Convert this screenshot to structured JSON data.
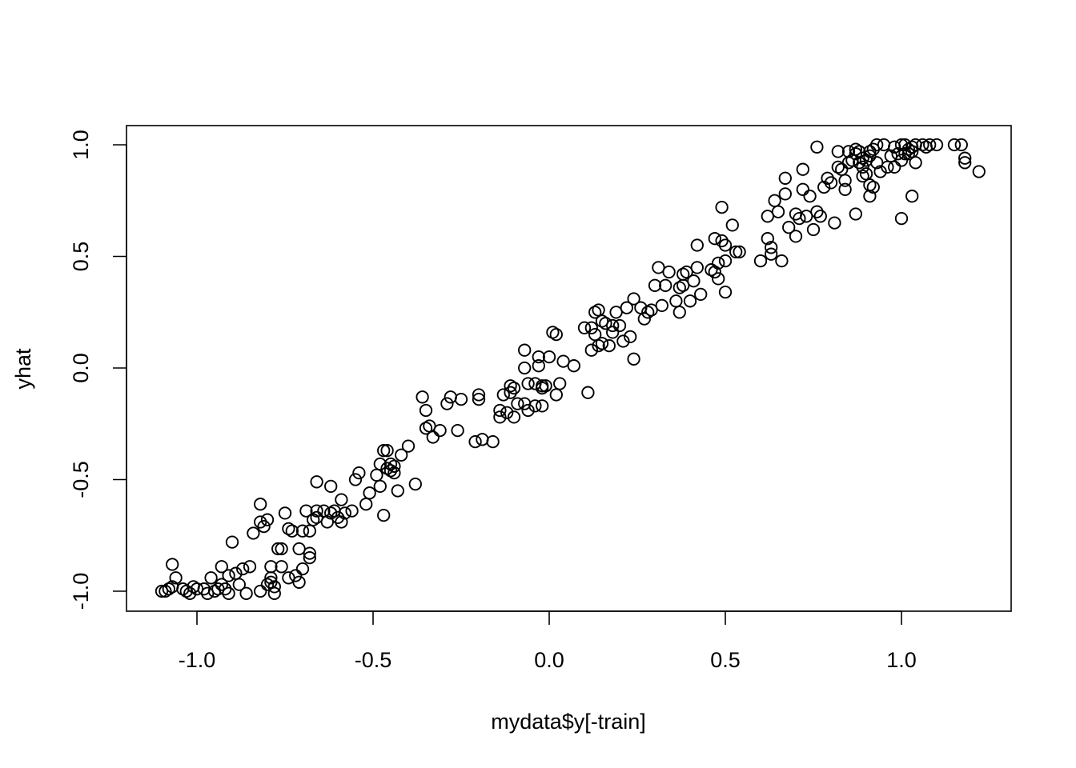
{
  "chart_data": {
    "type": "scatter",
    "title": "",
    "xlabel": "mydata$y[-train]",
    "ylabel": "yhat",
    "xlim": [
      -1.2,
      1.3
    ],
    "ylim": [
      -1.08,
      1.1
    ],
    "x_ticks": [
      -1.0,
      -0.5,
      0.0,
      0.5,
      1.0
    ],
    "x_tick_labels": [
      "-1.0",
      "-0.5",
      "0.0",
      "0.5",
      "1.0"
    ],
    "y_ticks": [
      -1.0,
      -0.5,
      0.0,
      0.5,
      1.0
    ],
    "y_tick_labels": [
      "-1.0",
      "-0.5",
      "0.0",
      "0.5",
      "1.0"
    ],
    "grid": false,
    "legend": "none",
    "marker": "open-circle",
    "color": "#000000",
    "points": [
      [
        -1.1,
        -1.0
      ],
      [
        -1.09,
        -1.0
      ],
      [
        -1.08,
        -0.99
      ],
      [
        -1.07,
        -0.98
      ],
      [
        -1.07,
        -0.88
      ],
      [
        -1.06,
        -0.94
      ],
      [
        -1.04,
        -0.99
      ],
      [
        -1.03,
        -1.0
      ],
      [
        -1.02,
        -1.01
      ],
      [
        -1.01,
        -0.98
      ],
      [
        -1.0,
        -0.99
      ],
      [
        -0.98,
        -0.99
      ],
      [
        -0.97,
        -1.01
      ],
      [
        -0.96,
        -0.94
      ],
      [
        -0.95,
        -1.0
      ],
      [
        -0.94,
        -0.99
      ],
      [
        -0.93,
        -0.97
      ],
      [
        -0.93,
        -0.89
      ],
      [
        -0.92,
        -0.99
      ],
      [
        -0.91,
        -0.93
      ],
      [
        -0.91,
        -1.01
      ],
      [
        -0.9,
        -0.78
      ],
      [
        -0.89,
        -0.92
      ],
      [
        -0.88,
        -0.97
      ],
      [
        -0.87,
        -0.9
      ],
      [
        -0.86,
        -1.01
      ],
      [
        -0.85,
        -0.89
      ],
      [
        -0.84,
        -0.74
      ],
      [
        -0.82,
        -1.0
      ],
      [
        -0.82,
        -0.61
      ],
      [
        -0.82,
        -0.69
      ],
      [
        -0.81,
        -0.71
      ],
      [
        -0.8,
        -0.97
      ],
      [
        -0.8,
        -0.68
      ],
      [
        -0.79,
        -0.96
      ],
      [
        -0.79,
        -0.94
      ],
      [
        -0.79,
        -0.89
      ],
      [
        -0.78,
        -1.01
      ],
      [
        -0.78,
        -0.98
      ],
      [
        -0.77,
        -0.81
      ],
      [
        -0.76,
        -0.89
      ],
      [
        -0.76,
        -0.81
      ],
      [
        -0.75,
        -0.65
      ],
      [
        -0.74,
        -0.94
      ],
      [
        -0.74,
        -0.72
      ],
      [
        -0.73,
        -0.73
      ],
      [
        -0.72,
        -0.93
      ],
      [
        -0.71,
        -0.96
      ],
      [
        -0.71,
        -0.81
      ],
      [
        -0.7,
        -0.9
      ],
      [
        -0.7,
        -0.73
      ],
      [
        -0.69,
        -0.64
      ],
      [
        -0.68,
        -0.83
      ],
      [
        -0.68,
        -0.85
      ],
      [
        -0.68,
        -0.73
      ],
      [
        -0.67,
        -0.68
      ],
      [
        -0.66,
        -0.51
      ],
      [
        -0.66,
        -0.67
      ],
      [
        -0.66,
        -0.64
      ],
      [
        -0.64,
        -0.64
      ],
      [
        -0.63,
        -0.69
      ],
      [
        -0.62,
        -0.53
      ],
      [
        -0.62,
        -0.65
      ],
      [
        -0.61,
        -0.64
      ],
      [
        -0.6,
        -0.67
      ],
      [
        -0.59,
        -0.69
      ],
      [
        -0.59,
        -0.59
      ],
      [
        -0.58,
        -0.65
      ],
      [
        -0.56,
        -0.64
      ],
      [
        -0.55,
        -0.5
      ],
      [
        -0.54,
        -0.47
      ],
      [
        -0.52,
        -0.61
      ],
      [
        -0.51,
        -0.56
      ],
      [
        -0.49,
        -0.48
      ],
      [
        -0.48,
        -0.53
      ],
      [
        -0.48,
        -0.43
      ],
      [
        -0.47,
        -0.37
      ],
      [
        -0.47,
        -0.66
      ],
      [
        -0.46,
        -0.37
      ],
      [
        -0.46,
        -0.45
      ],
      [
        -0.45,
        -0.43
      ],
      [
        -0.45,
        -0.46
      ],
      [
        -0.44,
        -0.47
      ],
      [
        -0.44,
        -0.44
      ],
      [
        -0.43,
        -0.55
      ],
      [
        -0.42,
        -0.39
      ],
      [
        -0.4,
        -0.35
      ],
      [
        -0.38,
        -0.52
      ],
      [
        -0.36,
        -0.13
      ],
      [
        -0.35,
        -0.27
      ],
      [
        -0.35,
        -0.19
      ],
      [
        -0.34,
        -0.26
      ],
      [
        -0.33,
        -0.31
      ],
      [
        -0.31,
        -0.28
      ],
      [
        -0.29,
        -0.16
      ],
      [
        -0.28,
        -0.13
      ],
      [
        -0.26,
        -0.28
      ],
      [
        -0.25,
        -0.14
      ],
      [
        -0.21,
        -0.33
      ],
      [
        -0.2,
        -0.12
      ],
      [
        -0.2,
        -0.14
      ],
      [
        -0.19,
        -0.32
      ],
      [
        -0.16,
        -0.33
      ],
      [
        -0.14,
        -0.19
      ],
      [
        -0.14,
        -0.22
      ],
      [
        -0.13,
        -0.12
      ],
      [
        -0.12,
        -0.2
      ],
      [
        -0.11,
        -0.08
      ],
      [
        -0.11,
        -0.11
      ],
      [
        -0.1,
        -0.22
      ],
      [
        -0.1,
        -0.09
      ],
      [
        -0.09,
        -0.16
      ],
      [
        -0.07,
        0.08
      ],
      [
        -0.07,
        -0.16
      ],
      [
        -0.07,
        0.0
      ],
      [
        -0.06,
        -0.07
      ],
      [
        -0.06,
        -0.19
      ],
      [
        -0.04,
        -0.17
      ],
      [
        -0.04,
        -0.07
      ],
      [
        -0.03,
        0.05
      ],
      [
        -0.03,
        0.01
      ],
      [
        -0.02,
        -0.08
      ],
      [
        -0.02,
        -0.09
      ],
      [
        -0.02,
        -0.17
      ],
      [
        -0.01,
        -0.08
      ],
      [
        0.0,
        0.05
      ],
      [
        0.01,
        0.16
      ],
      [
        0.02,
        0.15
      ],
      [
        0.02,
        -0.12
      ],
      [
        0.03,
        -0.07
      ],
      [
        0.04,
        0.03
      ],
      [
        0.07,
        0.01
      ],
      [
        0.1,
        0.18
      ],
      [
        0.11,
        -0.11
      ],
      [
        0.12,
        0.18
      ],
      [
        0.12,
        0.08
      ],
      [
        0.13,
        0.15
      ],
      [
        0.13,
        0.25
      ],
      [
        0.14,
        0.1
      ],
      [
        0.14,
        0.26
      ],
      [
        0.15,
        0.11
      ],
      [
        0.15,
        0.21
      ],
      [
        0.16,
        0.2
      ],
      [
        0.17,
        0.1
      ],
      [
        0.18,
        0.19
      ],
      [
        0.18,
        0.16
      ],
      [
        0.19,
        0.25
      ],
      [
        0.2,
        0.19
      ],
      [
        0.21,
        0.12
      ],
      [
        0.22,
        0.27
      ],
      [
        0.23,
        0.14
      ],
      [
        0.24,
        0.04
      ],
      [
        0.24,
        0.31
      ],
      [
        0.26,
        0.27
      ],
      [
        0.27,
        0.22
      ],
      [
        0.28,
        0.25
      ],
      [
        0.29,
        0.26
      ],
      [
        0.3,
        0.37
      ],
      [
        0.31,
        0.45
      ],
      [
        0.32,
        0.28
      ],
      [
        0.33,
        0.37
      ],
      [
        0.34,
        0.43
      ],
      [
        0.36,
        0.3
      ],
      [
        0.37,
        0.36
      ],
      [
        0.37,
        0.25
      ],
      [
        0.38,
        0.42
      ],
      [
        0.38,
        0.37
      ],
      [
        0.39,
        0.43
      ],
      [
        0.4,
        0.3
      ],
      [
        0.41,
        0.39
      ],
      [
        0.42,
        0.45
      ],
      [
        0.42,
        0.55
      ],
      [
        0.43,
        0.33
      ],
      [
        0.46,
        0.44
      ],
      [
        0.47,
        0.58
      ],
      [
        0.47,
        0.43
      ],
      [
        0.48,
        0.47
      ],
      [
        0.48,
        0.4
      ],
      [
        0.49,
        0.57
      ],
      [
        0.49,
        0.72
      ],
      [
        0.5,
        0.48
      ],
      [
        0.5,
        0.55
      ],
      [
        0.5,
        0.34
      ],
      [
        0.52,
        0.64
      ],
      [
        0.53,
        0.52
      ],
      [
        0.54,
        0.52
      ],
      [
        0.6,
        0.48
      ],
      [
        0.62,
        0.58
      ],
      [
        0.62,
        0.68
      ],
      [
        0.63,
        0.51
      ],
      [
        0.63,
        0.54
      ],
      [
        0.64,
        0.75
      ],
      [
        0.65,
        0.7
      ],
      [
        0.66,
        0.48
      ],
      [
        0.67,
        0.78
      ],
      [
        0.67,
        0.85
      ],
      [
        0.68,
        0.63
      ],
      [
        0.7,
        0.69
      ],
      [
        0.7,
        0.59
      ],
      [
        0.71,
        0.67
      ],
      [
        0.72,
        0.8
      ],
      [
        0.72,
        0.89
      ],
      [
        0.73,
        0.68
      ],
      [
        0.74,
        0.77
      ],
      [
        0.75,
        0.62
      ],
      [
        0.76,
        0.7
      ],
      [
        0.76,
        0.99
      ],
      [
        0.77,
        0.68
      ],
      [
        0.78,
        0.81
      ],
      [
        0.79,
        0.85
      ],
      [
        0.8,
        0.83
      ],
      [
        0.81,
        0.65
      ],
      [
        0.82,
        0.97
      ],
      [
        0.82,
        0.9
      ],
      [
        0.83,
        0.89
      ],
      [
        0.84,
        0.8
      ],
      [
        0.84,
        0.84
      ],
      [
        0.85,
        0.92
      ],
      [
        0.85,
        0.97
      ],
      [
        0.86,
        0.93
      ],
      [
        0.87,
        0.96
      ],
      [
        0.87,
        0.98
      ],
      [
        0.87,
        0.69
      ],
      [
        0.88,
        0.97
      ],
      [
        0.88,
        0.92
      ],
      [
        0.89,
        0.86
      ],
      [
        0.89,
        0.9
      ],
      [
        0.89,
        0.94
      ],
      [
        0.9,
        0.87
      ],
      [
        0.9,
        0.93
      ],
      [
        0.91,
        0.95
      ],
      [
        0.91,
        0.97
      ],
      [
        0.91,
        0.82
      ],
      [
        0.91,
        0.77
      ],
      [
        0.92,
        0.98
      ],
      [
        0.92,
        0.81
      ],
      [
        0.93,
        1.0
      ],
      [
        0.93,
        0.92
      ],
      [
        0.94,
        0.88
      ],
      [
        0.95,
        1.0
      ],
      [
        0.96,
        0.9
      ],
      [
        0.97,
        0.95
      ],
      [
        0.98,
        0.99
      ],
      [
        0.98,
        0.9
      ],
      [
        0.99,
        0.96
      ],
      [
        1.0,
        0.93
      ],
      [
        1.0,
        0.67
      ],
      [
        1.0,
        1.0
      ],
      [
        1.01,
        0.96
      ],
      [
        1.01,
        1.0
      ],
      [
        1.02,
        0.98
      ],
      [
        1.02,
        0.96
      ],
      [
        1.03,
        0.97
      ],
      [
        1.03,
        0.99
      ],
      [
        1.03,
        0.77
      ],
      [
        1.04,
        0.92
      ],
      [
        1.04,
        1.0
      ],
      [
        1.06,
        1.0
      ],
      [
        1.07,
        0.99
      ],
      [
        1.08,
        1.0
      ],
      [
        1.1,
        1.0
      ],
      [
        1.15,
        1.0
      ],
      [
        1.17,
        1.0
      ],
      [
        1.18,
        0.92
      ],
      [
        1.18,
        0.94
      ],
      [
        1.22,
        0.88
      ]
    ]
  }
}
